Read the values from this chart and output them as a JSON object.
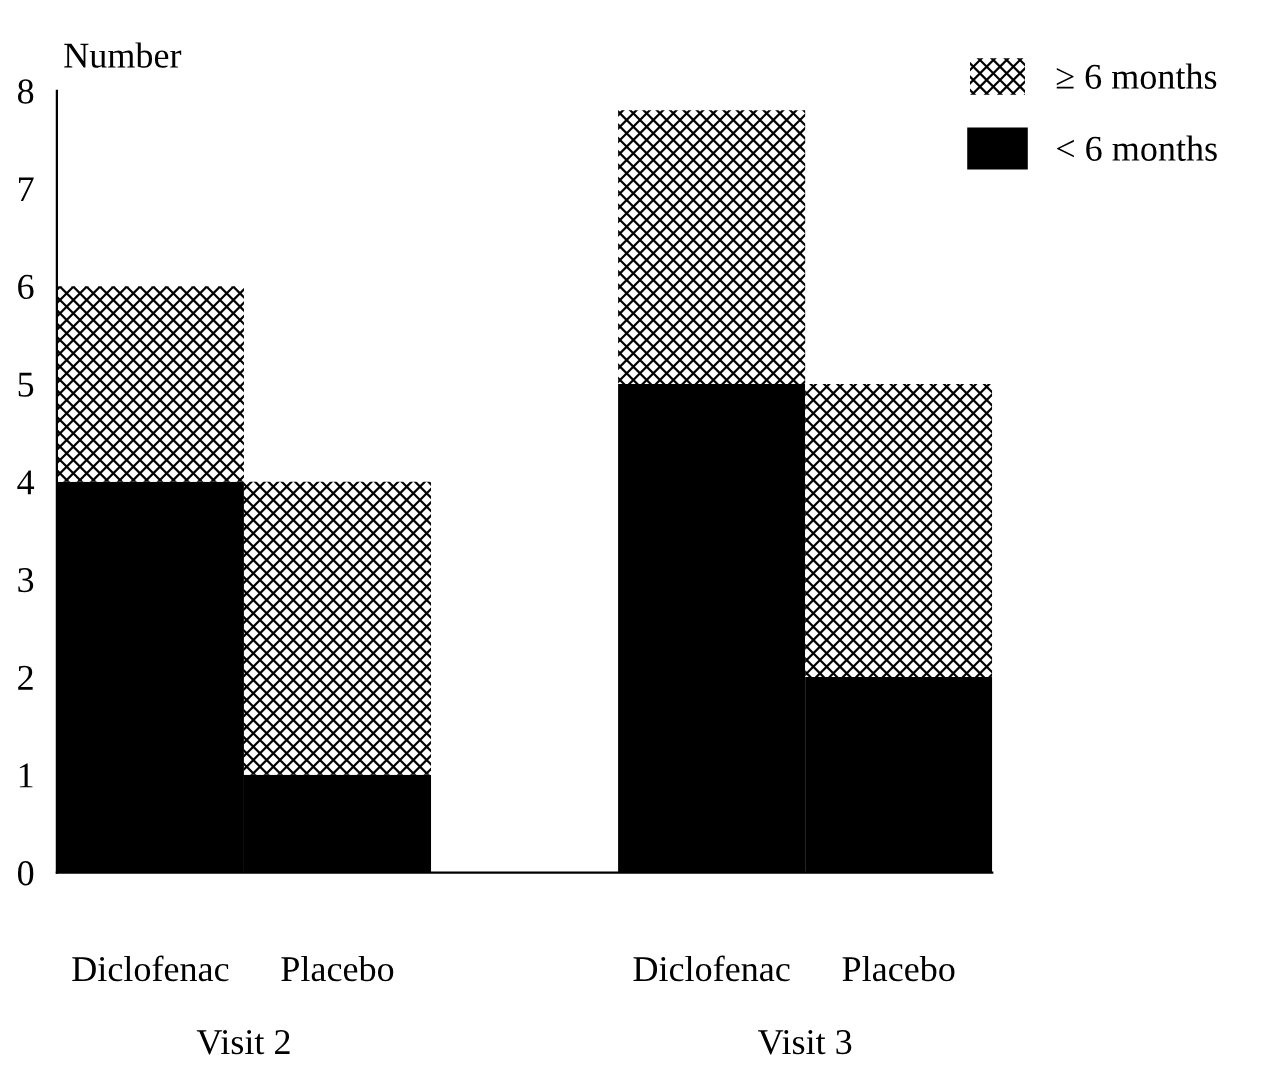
{
  "chart_data": {
    "type": "bar",
    "stacked": true,
    "ylabel": "Number",
    "categories": [
      "Diclofenac",
      "Placebo",
      null,
      "Diclofenac",
      "Placebo"
    ],
    "series": [
      {
        "name": "< 6 months",
        "color": "#000000",
        "values": [
          4,
          1,
          null,
          5,
          2
        ]
      },
      {
        "name": "≥ 6 months",
        "color": "#ffffff",
        "values": [
          2,
          3,
          null,
          2.8,
          3
        ]
      }
    ],
    "ylim": [
      0,
      8
    ],
    "yticks": [
      0,
      1,
      2,
      3,
      4,
      5,
      6,
      7,
      8
    ],
    "grid": false,
    "legend": "top right",
    "annotations": [
      "Visit 2",
      "Visit 3"
    ]
  }
}
